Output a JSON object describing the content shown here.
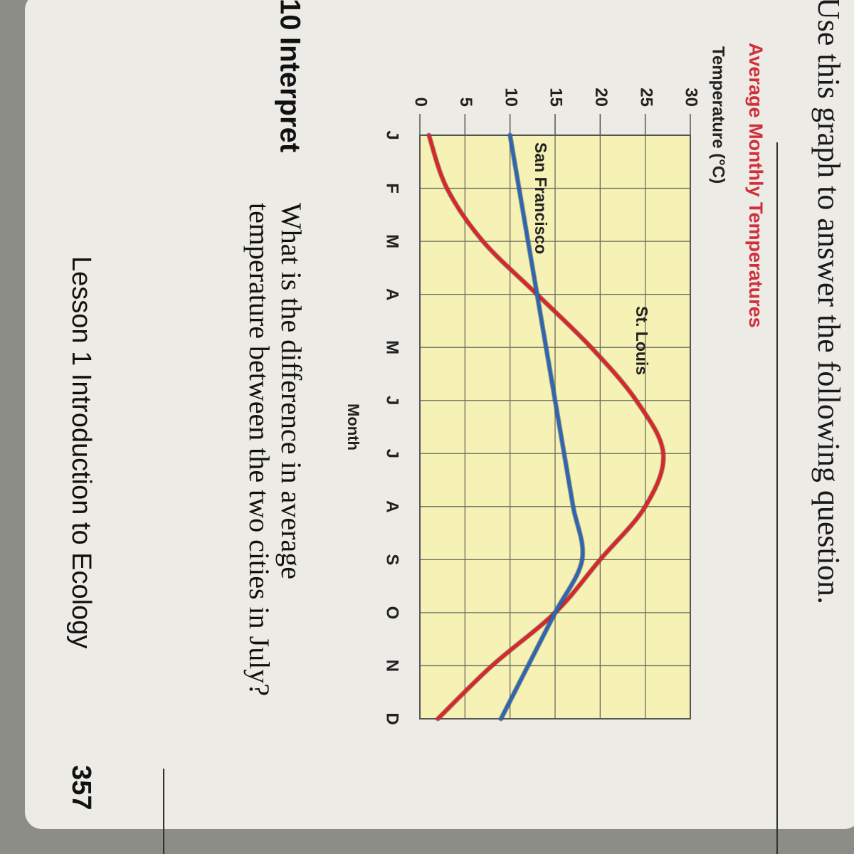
{
  "instruction": "Use this graph to answer the following question.",
  "chart_data": {
    "type": "line",
    "title": "Average Monthly Temperatures",
    "y_label": "Temperature (°C)",
    "x_label": "Month",
    "categories": [
      "J",
      "F",
      "M",
      "A",
      "M",
      "J",
      "J",
      "A",
      "S",
      "O",
      "N",
      "D"
    ],
    "series": [
      {
        "name": "St. Louis",
        "color": "#d8262c",
        "values": [
          1,
          3,
          7,
          13,
          19,
          24,
          27,
          25,
          20,
          15,
          8,
          2
        ]
      },
      {
        "name": "San Francisco",
        "color": "#2f66b3",
        "values": [
          10,
          11,
          12,
          13,
          14,
          15,
          16,
          17,
          18,
          15,
          12,
          9
        ]
      }
    ],
    "ylim": [
      0,
      30
    ],
    "yticks": [
      0,
      5,
      10,
      15,
      20,
      25,
      30
    ],
    "grid": true
  },
  "question": {
    "number": "10",
    "label": "Interpret",
    "lines": [
      "What is the difference in average",
      "temperature between the two cities in July?"
    ]
  },
  "footer": {
    "lesson": "Lesson 1 Introduction to Ecology",
    "page": "357"
  }
}
